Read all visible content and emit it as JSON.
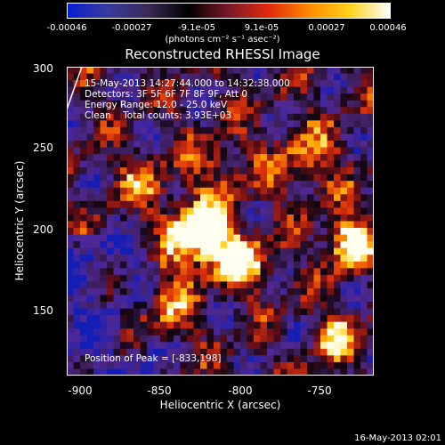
{
  "colorbar": {
    "ticks": [
      "-0.00046",
      "-0.00027",
      "-9.1e-05",
      "9.1e-05",
      "0.00027",
      "0.00046"
    ],
    "units": "(photons cm⁻² s⁻¹ asec⁻²)",
    "colors": [
      "#0a1ecc",
      "#3a3aa0",
      "#3a2a55",
      "#000000",
      "#7a1a2a",
      "#e02a0a",
      "#ff8a00",
      "#ffd21a",
      "#ffffff"
    ]
  },
  "title": "Reconstructed RHESSI Image",
  "annotations": {
    "time_range": "15-May-2013 14:27:44.000 to 14:32:38.000",
    "detectors": "Detectors: 3F 5F 6F 7F 8F 9F, Att 0",
    "energy_range": "Energy Range: 12.0 - 25.0 keV",
    "clean_counts": "Clean    Total counts: 3.93E+03",
    "peak_position": "Position of Peak = [-833,198]"
  },
  "axes": {
    "xlabel": "Heliocentric X (arcsec)",
    "ylabel": "Heliocentric Y (arcsec)",
    "xticks": [
      "-900",
      "-850",
      "-800",
      "-750"
    ],
    "yticks": [
      "300",
      "250",
      "200",
      "150"
    ]
  },
  "image": {
    "x_range": [
      -908,
      -717
    ],
    "y_range": [
      103,
      301
    ],
    "peak": [
      -833,
      198
    ]
  },
  "datestamp": "16-May-2013 02:01"
}
